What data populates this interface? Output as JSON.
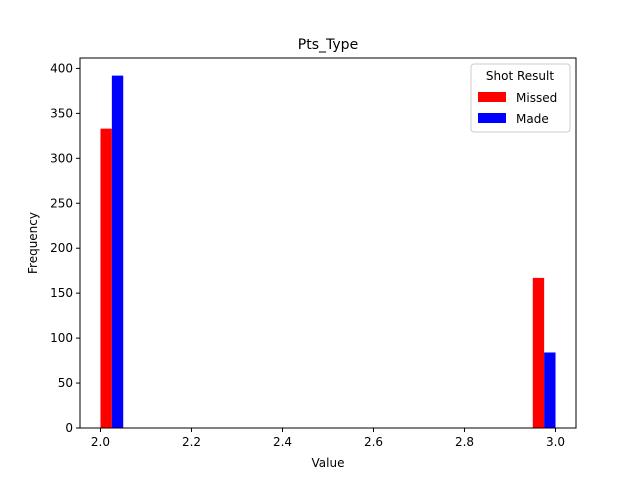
{
  "chart_data": {
    "type": "bar",
    "title": "Pts_Type",
    "xlabel": "Value",
    "ylabel": "Frequency",
    "xlim": [
      1.955,
      3.045
    ],
    "ylim": [
      0,
      411.6
    ],
    "x_ticks": [
      "2.0",
      "2.2",
      "2.4",
      "2.6",
      "2.8",
      "3.0"
    ],
    "y_ticks": [
      "0",
      "50",
      "100",
      "150",
      "200",
      "250",
      "300",
      "350",
      "400"
    ],
    "grid": false,
    "legend": {
      "title": "Shot Result",
      "placement": "upper right"
    },
    "bar_centers": [
      2.025,
      2.975
    ],
    "bar_width": 0.05,
    "series": [
      {
        "name": "Missed",
        "color": "#ff0000",
        "values": [
          333,
          167
        ]
      },
      {
        "name": "Made",
        "color": "#0000ff",
        "values": [
          392,
          84
        ]
      }
    ]
  }
}
